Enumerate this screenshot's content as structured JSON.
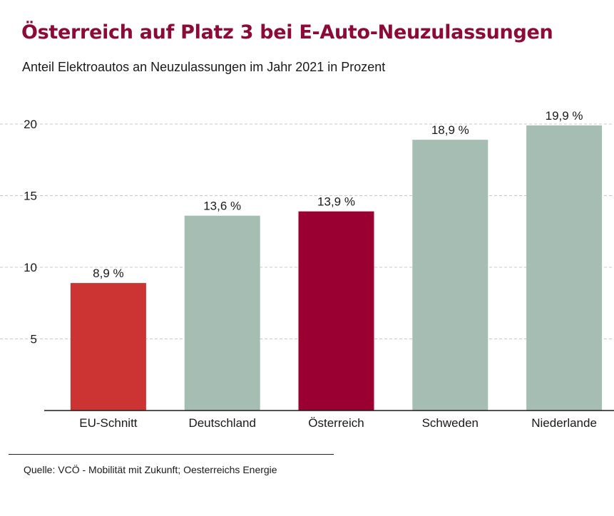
{
  "title": "Österreich auf Platz 3 bei E-Auto-Neuzulassungen",
  "subtitle": "Anteil Elektroautos an Neuzulassungen im Jahr 2021 in Prozent",
  "source": "Quelle: VCÖ - Mobilität mit Zukunft; Oesterreichs Energie",
  "colors": {
    "title": "#8b0a36",
    "highlight_austria": "#9b0033",
    "highlight_eu": "#cc3333",
    "default_bar": "#a6bdb3",
    "grid": "#c8c8c8"
  },
  "chart_data": {
    "type": "bar",
    "categories": [
      "EU-Schnitt",
      "Deutschland",
      "Österreich",
      "Schweden",
      "Niederlande"
    ],
    "values": [
      8.9,
      13.6,
      13.9,
      18.9,
      19.9
    ],
    "data_labels": [
      "8,9 %",
      "13,6 %",
      "13,9 %",
      "18,9 %",
      "19,9 %"
    ],
    "bar_colors": [
      "#cc3333",
      "#a6bdb3",
      "#9b0033",
      "#a6bdb3",
      "#a6bdb3"
    ],
    "yticks": [
      5,
      10,
      15,
      20
    ],
    "ylim": [
      0,
      20
    ],
    "grid": true,
    "legend": false
  }
}
